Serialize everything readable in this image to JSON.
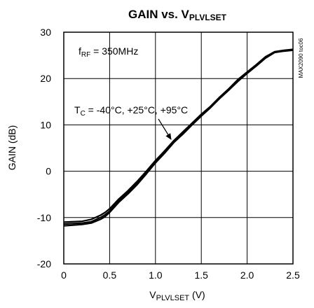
{
  "chart_data": {
    "type": "line",
    "title": {
      "main": "GAIN vs. V",
      "sub": "PLVLSET"
    },
    "xlabel": {
      "main": "V",
      "sub": "PLVLSET",
      "unit": " (V)"
    },
    "ylabel": "GAIN (dB)",
    "xlim": [
      0,
      2.5
    ],
    "ylim": [
      -20,
      30
    ],
    "xticks": [
      0,
      0.5,
      1.0,
      1.5,
      2.0,
      2.5
    ],
    "xtick_labels": [
      "0",
      "0.5",
      "1.0",
      "1.5",
      "2.0",
      "2.5"
    ],
    "yticks": [
      -20,
      -10,
      0,
      10,
      20,
      30
    ],
    "ytick_labels": [
      "-20",
      "-10",
      "0",
      "10",
      "20",
      "30"
    ],
    "grid": true,
    "annotations": {
      "frf": {
        "main": "f",
        "sub": "RF",
        "rest": " = 350MHz"
      },
      "tc": {
        "main": "T",
        "sub": "C",
        "rest": " = -40°C, +25°C, +95°C"
      }
    },
    "side_label": "MAX2090 toc06",
    "series": [
      {
        "x": [
          0,
          0.2,
          0.3,
          0.4,
          0.45,
          0.5,
          0.6,
          0.7,
          0.8,
          0.9,
          1.0,
          1.1,
          1.2,
          1.3,
          1.4,
          1.5,
          1.6,
          1.7,
          1.8,
          1.9,
          2.0,
          2.1,
          2.2,
          2.3,
          2.4,
          2.5
        ],
        "values": [
          -11.4,
          -11.2,
          -10.9,
          -10.0,
          -9.4,
          -8.6,
          -6.4,
          -4.6,
          -2.6,
          -0.4,
          2.0,
          4.1,
          6.4,
          8.2,
          10.2,
          12.1,
          13.8,
          15.8,
          17.6,
          19.6,
          21.2,
          22.8,
          24.5,
          25.7,
          26.0,
          26.2
        ]
      },
      {
        "x": [
          0,
          0.2,
          0.3,
          0.4,
          0.45,
          0.5,
          0.6,
          0.7,
          0.8,
          0.9,
          1.0,
          1.1,
          1.2,
          1.3,
          1.4,
          1.5,
          1.6,
          1.7,
          1.8,
          1.9,
          2.0,
          2.1,
          2.2,
          2.3,
          2.4,
          2.5
        ],
        "values": [
          -11.8,
          -11.5,
          -11.2,
          -10.4,
          -9.8,
          -8.9,
          -6.7,
          -4.9,
          -2.9,
          -0.6,
          1.8,
          3.9,
          6.2,
          8.0,
          10.0,
          11.9,
          13.7,
          15.7,
          17.5,
          19.4,
          21.1,
          22.7,
          24.4,
          25.6,
          25.9,
          26.1
        ]
      },
      {
        "x": [
          0,
          0.2,
          0.3,
          0.4,
          0.45,
          0.5,
          0.6,
          0.7,
          0.8,
          0.9,
          1.0,
          1.1,
          1.2,
          1.3,
          1.4,
          1.5,
          1.6,
          1.7,
          1.8,
          1.9,
          2.0,
          2.1,
          2.2,
          2.3,
          2.4,
          2.5
        ],
        "values": [
          -11.0,
          -10.8,
          -10.4,
          -9.5,
          -8.9,
          -8.1,
          -6.0,
          -4.2,
          -2.2,
          0.0,
          2.3,
          4.4,
          6.6,
          8.5,
          10.4,
          12.3,
          14.0,
          16.0,
          17.8,
          19.8,
          21.4,
          23.0,
          24.7,
          25.8,
          26.1,
          26.3
        ]
      }
    ]
  }
}
